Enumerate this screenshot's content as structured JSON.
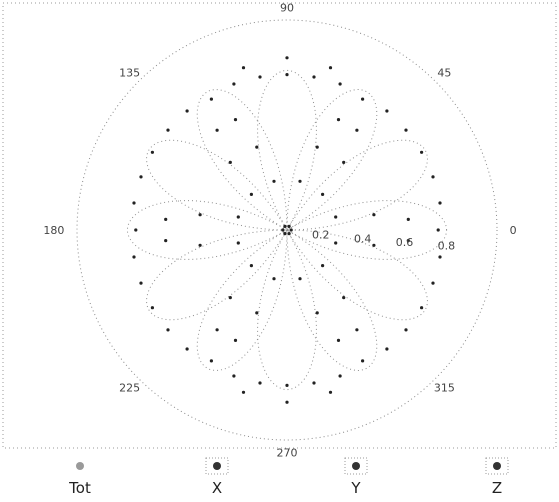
{
  "chart_data": {
    "type": "polar-scatter",
    "title": "",
    "angle_unit": "degrees",
    "angle_ticks": [
      0,
      45,
      90,
      135,
      180,
      225,
      270,
      315
    ],
    "angle_tick_labels": [
      "0",
      "45",
      "90",
      "135",
      "180",
      "225",
      "270",
      "315"
    ],
    "radial_ticks": [
      0.2,
      0.4,
      0.6,
      0.8
    ],
    "radial_tick_labels": [
      "0.2",
      "0.4",
      "0.6",
      "0.8"
    ],
    "rlim": [
      0,
      1.0
    ],
    "grid": "outer circle only",
    "points": [
      {
        "theta": 0,
        "r": 0.02
      },
      {
        "theta": 60,
        "r": 0.02
      },
      {
        "theta": 120,
        "r": 0.02
      },
      {
        "theta": 180,
        "r": 0.02
      },
      {
        "theta": 240,
        "r": 0.02
      },
      {
        "theta": 300,
        "r": 0.02
      },
      {
        "theta": 15,
        "r": 0.24
      },
      {
        "theta": 45,
        "r": 0.24
      },
      {
        "theta": 75,
        "r": 0.24
      },
      {
        "theta": 105,
        "r": 0.24
      },
      {
        "theta": 135,
        "r": 0.24
      },
      {
        "theta": 165,
        "r": 0.24
      },
      {
        "theta": 195,
        "r": 0.24
      },
      {
        "theta": 225,
        "r": 0.24
      },
      {
        "theta": 255,
        "r": 0.24
      },
      {
        "theta": 285,
        "r": 0.24
      },
      {
        "theta": 315,
        "r": 0.24
      },
      {
        "theta": 345,
        "r": 0.24
      },
      {
        "theta": 10,
        "r": 0.42
      },
      {
        "theta": 50,
        "r": 0.42
      },
      {
        "theta": 70,
        "r": 0.42
      },
      {
        "theta": 110,
        "r": 0.42
      },
      {
        "theta": 130,
        "r": 0.42
      },
      {
        "theta": 170,
        "r": 0.42
      },
      {
        "theta": 190,
        "r": 0.42
      },
      {
        "theta": 230,
        "r": 0.42
      },
      {
        "theta": 250,
        "r": 0.42
      },
      {
        "theta": 290,
        "r": 0.42
      },
      {
        "theta": 310,
        "r": 0.42
      },
      {
        "theta": 350,
        "r": 0.42
      },
      {
        "theta": 5,
        "r": 0.58
      },
      {
        "theta": 55,
        "r": 0.58
      },
      {
        "theta": 65,
        "r": 0.58
      },
      {
        "theta": 115,
        "r": 0.58
      },
      {
        "theta": 125,
        "r": 0.58
      },
      {
        "theta": 175,
        "r": 0.58
      },
      {
        "theta": 185,
        "r": 0.58
      },
      {
        "theta": 235,
        "r": 0.58
      },
      {
        "theta": 245,
        "r": 0.58
      },
      {
        "theta": 295,
        "r": 0.58
      },
      {
        "theta": 305,
        "r": 0.58
      },
      {
        "theta": 355,
        "r": 0.58
      },
      {
        "theta": 0,
        "r": 0.72
      },
      {
        "theta": 60,
        "r": 0.72
      },
      {
        "theta": 120,
        "r": 0.72
      },
      {
        "theta": 180,
        "r": 0.72
      },
      {
        "theta": 240,
        "r": 0.72
      },
      {
        "theta": 300,
        "r": 0.72
      },
      {
        "theta": 10,
        "r": 0.74
      },
      {
        "theta": 20,
        "r": 0.74
      },
      {
        "theta": 30,
        "r": 0.74
      },
      {
        "theta": 40,
        "r": 0.74
      },
      {
        "theta": 50,
        "r": 0.74
      },
      {
        "theta": 70,
        "r": 0.74
      },
      {
        "theta": 80,
        "r": 0.74
      },
      {
        "theta": 90,
        "r": 0.74
      },
      {
        "theta": 100,
        "r": 0.74
      },
      {
        "theta": 110,
        "r": 0.74
      },
      {
        "theta": 130,
        "r": 0.74
      },
      {
        "theta": 140,
        "r": 0.74
      },
      {
        "theta": 150,
        "r": 0.74
      },
      {
        "theta": 160,
        "r": 0.74
      },
      {
        "theta": 170,
        "r": 0.74
      },
      {
        "theta": 190,
        "r": 0.74
      },
      {
        "theta": 200,
        "r": 0.74
      },
      {
        "theta": 210,
        "r": 0.74
      },
      {
        "theta": 220,
        "r": 0.74
      },
      {
        "theta": 230,
        "r": 0.74
      },
      {
        "theta": 250,
        "r": 0.74
      },
      {
        "theta": 260,
        "r": 0.74
      },
      {
        "theta": 270,
        "r": 0.74
      },
      {
        "theta": 280,
        "r": 0.74
      },
      {
        "theta": 290,
        "r": 0.74
      },
      {
        "theta": 310,
        "r": 0.74
      },
      {
        "theta": 320,
        "r": 0.74
      },
      {
        "theta": 330,
        "r": 0.74
      },
      {
        "theta": 340,
        "r": 0.74
      },
      {
        "theta": 350,
        "r": 0.74
      },
      {
        "theta": 90,
        "r": 0.82
      },
      {
        "theta": 75,
        "r": 0.8
      },
      {
        "theta": 105,
        "r": 0.8
      },
      {
        "theta": 270,
        "r": 0.82
      },
      {
        "theta": 255,
        "r": 0.8
      },
      {
        "theta": 285,
        "r": 0.8
      }
    ],
    "legend": {
      "placement": "bottom",
      "entries": [
        {
          "label": "Tot",
          "swatch": "#9a9a9a",
          "selected": false
        },
        {
          "label": "X",
          "swatch": "#333333",
          "selected": true
        },
        {
          "label": "Y",
          "swatch": "#333333",
          "selected": true
        },
        {
          "label": "Z",
          "swatch": "#333333",
          "selected": true
        }
      ]
    },
    "colors": {
      "points": "#222222",
      "trace": "#8f8f8f",
      "grid": "#8a8a8a"
    }
  }
}
